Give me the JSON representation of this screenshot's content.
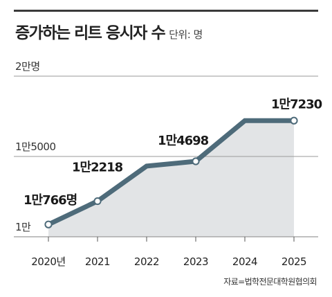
{
  "title": "증가하는 리트 응시자 수",
  "unit": "단위: 명",
  "source": "자료=법학전문대학원협의회",
  "colors": {
    "line": "#4e6b7a",
    "area": "#e2e4e6",
    "grid": "#9a9a9a",
    "marker_fill": "#ffffff"
  },
  "chart_data": {
    "type": "area",
    "title": "증가하는 리트 응시자 수",
    "unit": "명",
    "x": [
      "2020년",
      "2021",
      "2022",
      "2023",
      "2024",
      "2025"
    ],
    "values": [
      10766,
      12218,
      14400,
      14698,
      17230,
      17230
    ],
    "ylim": [
      10000,
      20000
    ],
    "y_ticks": [
      {
        "value": 10000,
        "label": "1만"
      },
      {
        "value": 15000,
        "label": "1만5000"
      },
      {
        "value": 20000,
        "label": "2만명"
      }
    ],
    "point_labels": [
      {
        "index": 0,
        "text": "1만766명"
      },
      {
        "index": 1,
        "text": "1만2218"
      },
      {
        "index": 3,
        "text": "1만4698"
      },
      {
        "index": 5,
        "text": "1만7230"
      }
    ],
    "markers_at": [
      0,
      1,
      3,
      5
    ],
    "grid": true
  }
}
